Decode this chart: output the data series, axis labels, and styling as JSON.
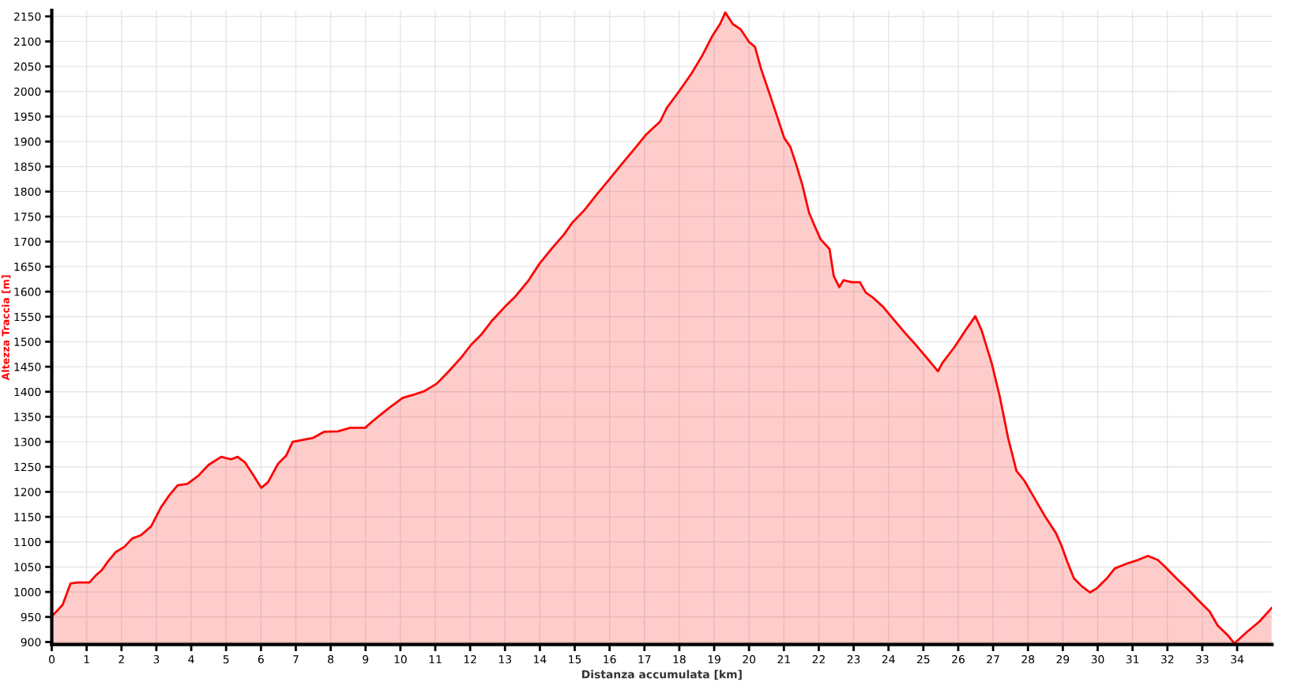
{
  "chart_data": {
    "type": "area",
    "xlabel": "Distanza accumulata [km]",
    "ylabel": "Altezza Traccia [m]",
    "x": [
      0,
      0.31,
      0.54,
      0.73,
      1.08,
      1.25,
      1.44,
      1.6,
      1.84,
      2.08,
      2.31,
      2.55,
      2.85,
      3.14,
      3.37,
      3.61,
      3.89,
      4.2,
      4.5,
      4.86,
      5.14,
      5.33,
      5.54,
      5.73,
      6.01,
      6.2,
      6.49,
      6.72,
      6.91,
      7.15,
      7.5,
      7.81,
      8.21,
      8.56,
      8.99,
      9.15,
      9.5,
      9.74,
      10.07,
      10.33,
      10.68,
      11.04,
      11.39,
      11.75,
      12.03,
      12.33,
      12.64,
      13.0,
      13.28,
      13.68,
      13.99,
      14.34,
      14.69,
      14.93,
      15.28,
      15.64,
      15.99,
      16.34,
      16.7,
      17.05,
      17.45,
      17.64,
      17.99,
      18.35,
      18.66,
      18.94,
      19.17,
      19.32,
      19.53,
      19.76,
      20.0,
      20.17,
      20.35,
      20.59,
      20.83,
      21.01,
      21.18,
      21.34,
      21.53,
      21.72,
      21.89,
      22.05,
      22.31,
      22.43,
      22.59,
      22.71,
      22.95,
      23.18,
      23.35,
      23.54,
      23.84,
      24.13,
      24.48,
      24.83,
      25.07,
      25.42,
      25.54,
      25.9,
      26.25,
      26.49,
      26.67,
      26.96,
      27.19,
      27.43,
      27.67,
      27.9,
      28.14,
      28.49,
      28.8,
      28.96,
      29.13,
      29.32,
      29.55,
      29.78,
      29.97,
      30.26,
      30.49,
      30.85,
      31.16,
      31.44,
      31.72,
      31.91,
      32.26,
      32.62,
      32.85,
      33.21,
      33.44,
      33.75,
      33.92,
      34.28,
      34.64,
      34.99
    ],
    "series": [
      {
        "color": "#ff0000",
        "values": [
          951,
          974,
          1017,
          1019,
          1019,
          1032,
          1044,
          1060,
          1080,
          1090,
          1107,
          1113,
          1131,
          1170,
          1193,
          1213,
          1216,
          1232,
          1254,
          1270,
          1265,
          1270,
          1259,
          1239,
          1208,
          1219,
          1256,
          1272,
          1300,
          1303,
          1308,
          1320,
          1321,
          1328,
          1328,
          1338,
          1358,
          1371,
          1388,
          1393,
          1401,
          1416,
          1441,
          1469,
          1494,
          1515,
          1543,
          1570,
          1589,
          1623,
          1656,
          1686,
          1714,
          1738,
          1763,
          1795,
          1824,
          1854,
          1884,
          1914,
          1940,
          1967,
          2000,
          2036,
          2072,
          2110,
          2135,
          2158,
          2135,
          2124,
          2099,
          2089,
          2044,
          1995,
          1945,
          1907,
          1890,
          1857,
          1813,
          1758,
          1730,
          1705,
          1685,
          1631,
          1609,
          1623,
          1619,
          1619,
          1598,
          1589,
          1570,
          1546,
          1517,
          1490,
          1470,
          1441,
          1457,
          1490,
          1527,
          1551,
          1523,
          1457,
          1391,
          1308,
          1242,
          1222,
          1193,
          1151,
          1118,
          1093,
          1060,
          1027,
          1011,
          999,
          1007,
          1027,
          1047,
          1057,
          1064,
          1072,
          1064,
          1052,
          1027,
          1003,
          986,
          961,
          933,
          912,
          897,
          920,
          941,
          968
        ]
      }
    ],
    "xlim": [
      0,
      35
    ],
    "ylim": [
      895,
      2162
    ],
    "xticks": [
      0,
      1,
      2,
      3,
      4,
      5,
      6,
      7,
      8,
      9,
      10,
      11,
      12,
      13,
      14,
      15,
      16,
      17,
      18,
      19,
      20,
      21,
      22,
      23,
      24,
      25,
      26,
      27,
      28,
      29,
      30,
      31,
      32,
      33,
      34
    ],
    "yticks": [
      900,
      950,
      1000,
      1050,
      1100,
      1150,
      1200,
      1250,
      1300,
      1350,
      1400,
      1450,
      1500,
      1550,
      1600,
      1650,
      1700,
      1750,
      1800,
      1850,
      1900,
      1950,
      2000,
      2050,
      2100,
      2150
    ],
    "grid": true,
    "marker": "none",
    "line_style": "solid"
  }
}
